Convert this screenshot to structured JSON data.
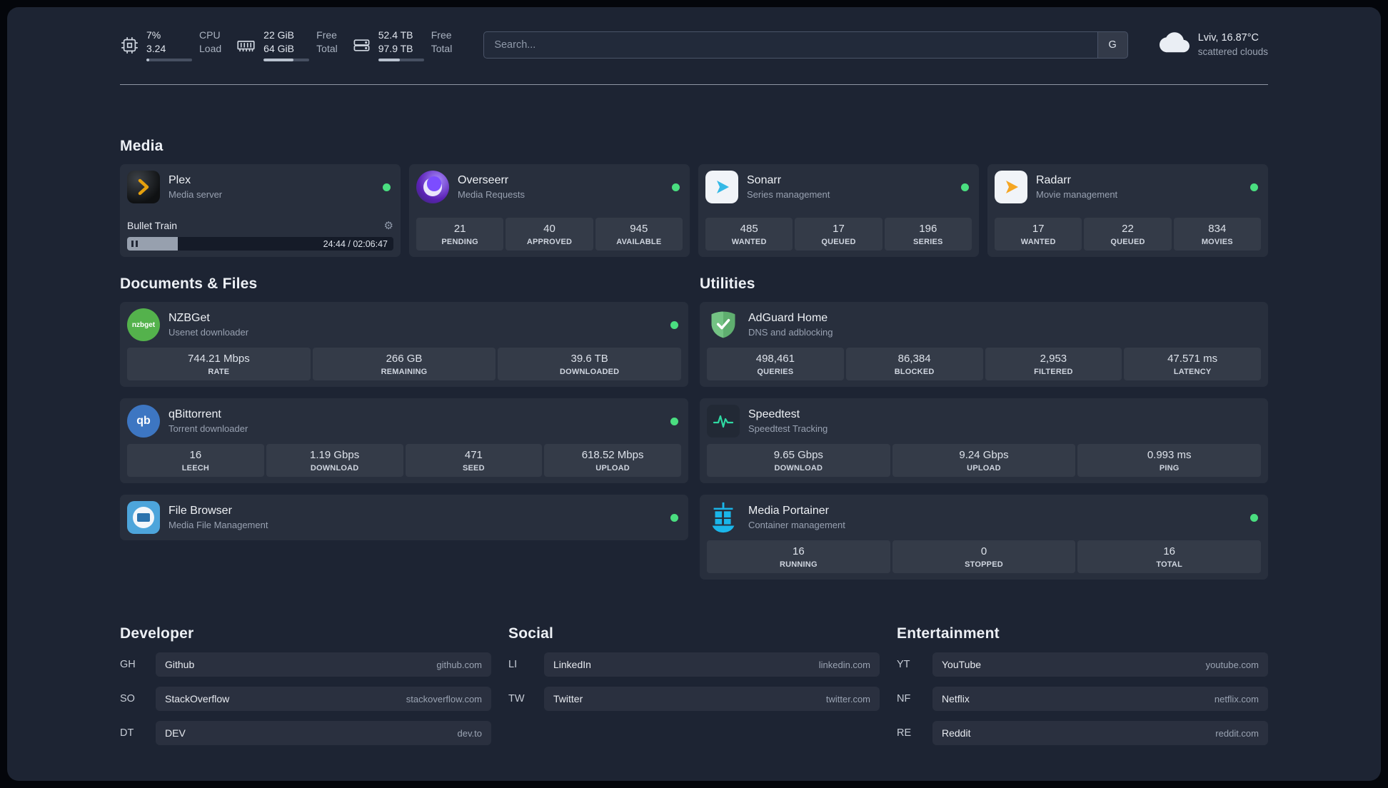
{
  "topbar": {
    "cpu": {
      "value_top": "7%",
      "value_bottom": "3.24",
      "label_top": "CPU",
      "label_bottom": "Load",
      "bar_percent": 7
    },
    "memory": {
      "value_top": "22 GiB",
      "value_bottom": "64 GiB",
      "label_top": "Free",
      "label_bottom": "Total",
      "bar_percent": 66
    },
    "disk": {
      "value_top": "52.4 TB",
      "value_bottom": "97.9 TB",
      "label_top": "Free",
      "label_bottom": "Total",
      "bar_percent": 47
    },
    "search": {
      "placeholder": "Search...",
      "provider_label": "G"
    },
    "weather": {
      "location": "Lviv, 16.87°C",
      "condition": "scattered clouds"
    }
  },
  "sections": {
    "media": {
      "title": "Media",
      "plex": {
        "name": "Plex",
        "subtitle": "Media server",
        "now_playing": "Bullet Train",
        "time": "24:44 / 02:06:47",
        "progress_percent": 19
      },
      "overseerr": {
        "name": "Overseerr",
        "subtitle": "Media Requests",
        "stats": [
          {
            "value": "21",
            "label": "PENDING"
          },
          {
            "value": "40",
            "label": "APPROVED"
          },
          {
            "value": "945",
            "label": "AVAILABLE"
          }
        ]
      },
      "sonarr": {
        "name": "Sonarr",
        "subtitle": "Series management",
        "stats": [
          {
            "value": "485",
            "label": "WANTED"
          },
          {
            "value": "17",
            "label": "QUEUED"
          },
          {
            "value": "196",
            "label": "SERIES"
          }
        ]
      },
      "radarr": {
        "name": "Radarr",
        "subtitle": "Movie management",
        "stats": [
          {
            "value": "17",
            "label": "WANTED"
          },
          {
            "value": "22",
            "label": "QUEUED"
          },
          {
            "value": "834",
            "label": "MOVIES"
          }
        ]
      }
    },
    "documents": {
      "title": "Documents & Files",
      "nzbget": {
        "name": "NZBGet",
        "subtitle": "Usenet downloader",
        "icon_text": "nzbget",
        "stats": [
          {
            "value": "744.21 Mbps",
            "label": "RATE"
          },
          {
            "value": "266 GB",
            "label": "REMAINING"
          },
          {
            "value": "39.6 TB",
            "label": "DOWNLOADED"
          }
        ]
      },
      "qbittorrent": {
        "name": "qBittorrent",
        "subtitle": "Torrent downloader",
        "icon_text": "qb",
        "stats": [
          {
            "value": "16",
            "label": "LEECH"
          },
          {
            "value": "1.19 Gbps",
            "label": "DOWNLOAD"
          },
          {
            "value": "471",
            "label": "SEED"
          },
          {
            "value": "618.52 Mbps",
            "label": "UPLOAD"
          }
        ]
      },
      "filebrowser": {
        "name": "File Browser",
        "subtitle": "Media File Management"
      }
    },
    "utilities": {
      "title": "Utilities",
      "adguard": {
        "name": "AdGuard Home",
        "subtitle": "DNS and adblocking",
        "stats": [
          {
            "value": "498,461",
            "label": "QUERIES"
          },
          {
            "value": "86,384",
            "label": "BLOCKED"
          },
          {
            "value": "2,953",
            "label": "FILTERED"
          },
          {
            "value": "47.571 ms",
            "label": "LATENCY"
          }
        ]
      },
      "speedtest": {
        "name": "Speedtest",
        "subtitle": "Speedtest Tracking",
        "stats": [
          {
            "value": "9.65 Gbps",
            "label": "DOWNLOAD"
          },
          {
            "value": "9.24 Gbps",
            "label": "UPLOAD"
          },
          {
            "value": "0.993 ms",
            "label": "PING"
          }
        ]
      },
      "portainer": {
        "name": "Media Portainer",
        "subtitle": "Container management",
        "stats": [
          {
            "value": "16",
            "label": "RUNNING"
          },
          {
            "value": "0",
            "label": "STOPPED"
          },
          {
            "value": "16",
            "label": "TOTAL"
          }
        ]
      }
    }
  },
  "bookmarks": {
    "developer": {
      "title": "Developer",
      "items": [
        {
          "abbr": "GH",
          "name": "Github",
          "url": "github.com"
        },
        {
          "abbr": "SO",
          "name": "StackOverflow",
          "url": "stackoverflow.com"
        },
        {
          "abbr": "DT",
          "name": "DEV",
          "url": "dev.to"
        }
      ]
    },
    "social": {
      "title": "Social",
      "items": [
        {
          "abbr": "LI",
          "name": "LinkedIn",
          "url": "linkedin.com"
        },
        {
          "abbr": "TW",
          "name": "Twitter",
          "url": "twitter.com"
        }
      ]
    },
    "entertainment": {
      "title": "Entertainment",
      "items": [
        {
          "abbr": "YT",
          "name": "YouTube",
          "url": "youtube.com"
        },
        {
          "abbr": "NF",
          "name": "Netflix",
          "url": "netflix.com"
        },
        {
          "abbr": "RE",
          "name": "Reddit",
          "url": "reddit.com"
        }
      ]
    }
  }
}
